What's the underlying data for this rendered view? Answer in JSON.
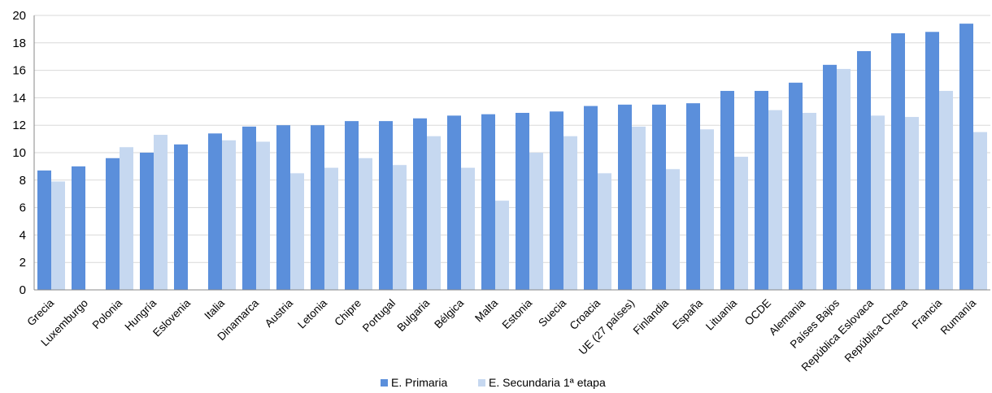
{
  "colors": {
    "primaria": "#5b8fdb",
    "secundaria": "#c6d8f0",
    "grid": "#d9d9d9"
  },
  "chart_data": {
    "type": "bar",
    "categories": [
      "Grecia",
      "Luxemburgo",
      "Polonia",
      "Hungría",
      "Eslovenia",
      "Italia",
      "Dinamarca",
      "Austria",
      "Letonia",
      "Chipre",
      "Portugal",
      "Bulgaria",
      "Bélgica",
      "Malta",
      "Estonia",
      "Suecia",
      "Croacia",
      "UE (27 países)",
      "Finlandia",
      "España",
      "Lituania",
      "OCDE",
      "Alemania",
      "Países Bajos",
      "República Eslovaca",
      "República Checa",
      "Francia",
      "Rumanía"
    ],
    "series": [
      {
        "name": "E. Primaria",
        "values": [
          8.7,
          9.0,
          9.6,
          10.0,
          10.6,
          11.4,
          11.9,
          12.0,
          12.0,
          12.3,
          12.3,
          12.5,
          12.7,
          12.8,
          12.9,
          13.0,
          13.4,
          13.5,
          13.5,
          13.6,
          14.5,
          14.5,
          15.1,
          16.4,
          17.4,
          18.7,
          18.8,
          19.4
        ]
      },
      {
        "name": "E. Secundaria 1ª etapa",
        "values": [
          7.9,
          null,
          10.4,
          11.3,
          null,
          10.9,
          10.8,
          8.5,
          8.9,
          9.6,
          9.1,
          11.2,
          8.9,
          6.5,
          10.0,
          11.2,
          8.5,
          11.9,
          8.8,
          11.7,
          9.7,
          13.1,
          12.9,
          16.1,
          12.7,
          12.6,
          14.5,
          11.5
        ]
      }
    ],
    "yticks": [
      "0",
      "2",
      "4",
      "6",
      "8",
      "10",
      "12",
      "14",
      "16",
      "18",
      "20"
    ],
    "ylim": [
      0,
      20
    ],
    "grid": true,
    "legend_position": "bottom"
  }
}
